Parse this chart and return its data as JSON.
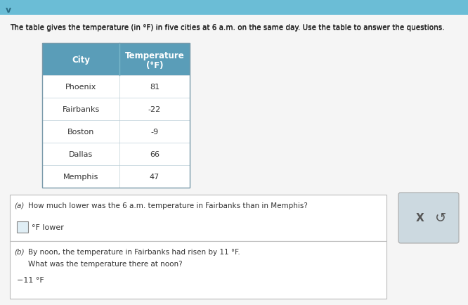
{
  "title": "The table gives the temperature (in °F) in five cities at 6 a.m. on the same day. Use the table to answer the questions.",
  "header_bg": "#5a9db8",
  "header_text_color": "#ffffff",
  "border_color": "#b0c4cc",
  "cities": [
    "Phoenix",
    "Fairbanks",
    "Boston",
    "Dallas",
    "Memphis"
  ],
  "temperatures": [
    "81",
    "-22",
    "-9",
    "66",
    "47"
  ],
  "question_a_label": "(a)",
  "question_a_text": "How much lower was the 6 a.m. temperature in Fairbanks than in Memphis?",
  "question_b_label": "(b)",
  "question_b_line1": "By noon, the temperature in Fairbanks had risen by 11 °F.",
  "question_b_line2": "What was the temperature there at noon?",
  "question_b_answer": "−11 °F",
  "bg_color": "#dde8ef",
  "white_bg": "#f5f5f5",
  "box_bg": "#ffffff",
  "header_row_color": "#5a9db8",
  "top_bar_color": "#6bbdd6",
  "btn_bg": "#ccd9e0"
}
